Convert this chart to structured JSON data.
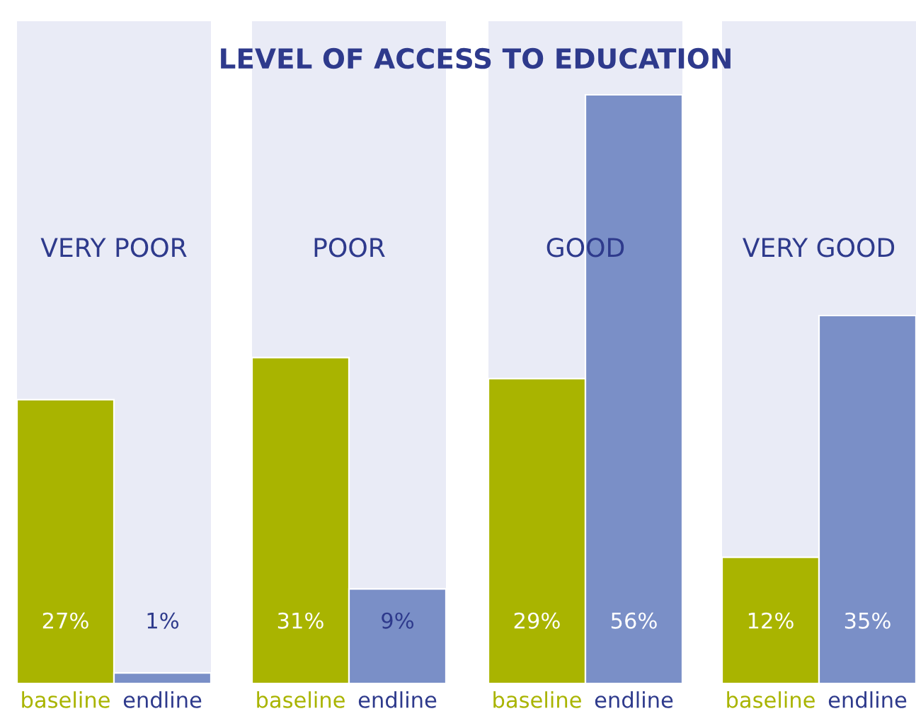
{
  "chart_data": [
    {
      "type": "bar",
      "title": "LEVEL OF ACCESS TO EDUCATION",
      "subtitle": "VERY POOR",
      "categories": [
        "baseline",
        "endline"
      ],
      "values": [
        27,
        1
      ],
      "colors": [
        "#a9b400",
        "#7a8fc7"
      ],
      "value_labels": [
        "27%",
        "1%"
      ]
    },
    {
      "type": "bar",
      "subtitle": "POOR",
      "categories": [
        "baseline",
        "endline"
      ],
      "values": [
        31,
        9
      ],
      "colors": [
        "#a9b400",
        "#7a8fc7"
      ],
      "value_labels": [
        "31%",
        "9%"
      ]
    },
    {
      "type": "bar",
      "subtitle": "GOOD",
      "categories": [
        "baseline",
        "endline"
      ],
      "values": [
        29,
        56
      ],
      "colors": [
        "#a9b400",
        "#7a8fc7"
      ],
      "value_labels": [
        "29%",
        "56%"
      ]
    },
    {
      "type": "bar",
      "subtitle": "VERY GOOD",
      "categories": [
        "baseline",
        "endline"
      ],
      "values": [
        12,
        35
      ],
      "colors": [
        "#a9b400",
        "#7a8fc7"
      ],
      "value_labels": [
        "12%",
        "35%"
      ]
    }
  ]
}
